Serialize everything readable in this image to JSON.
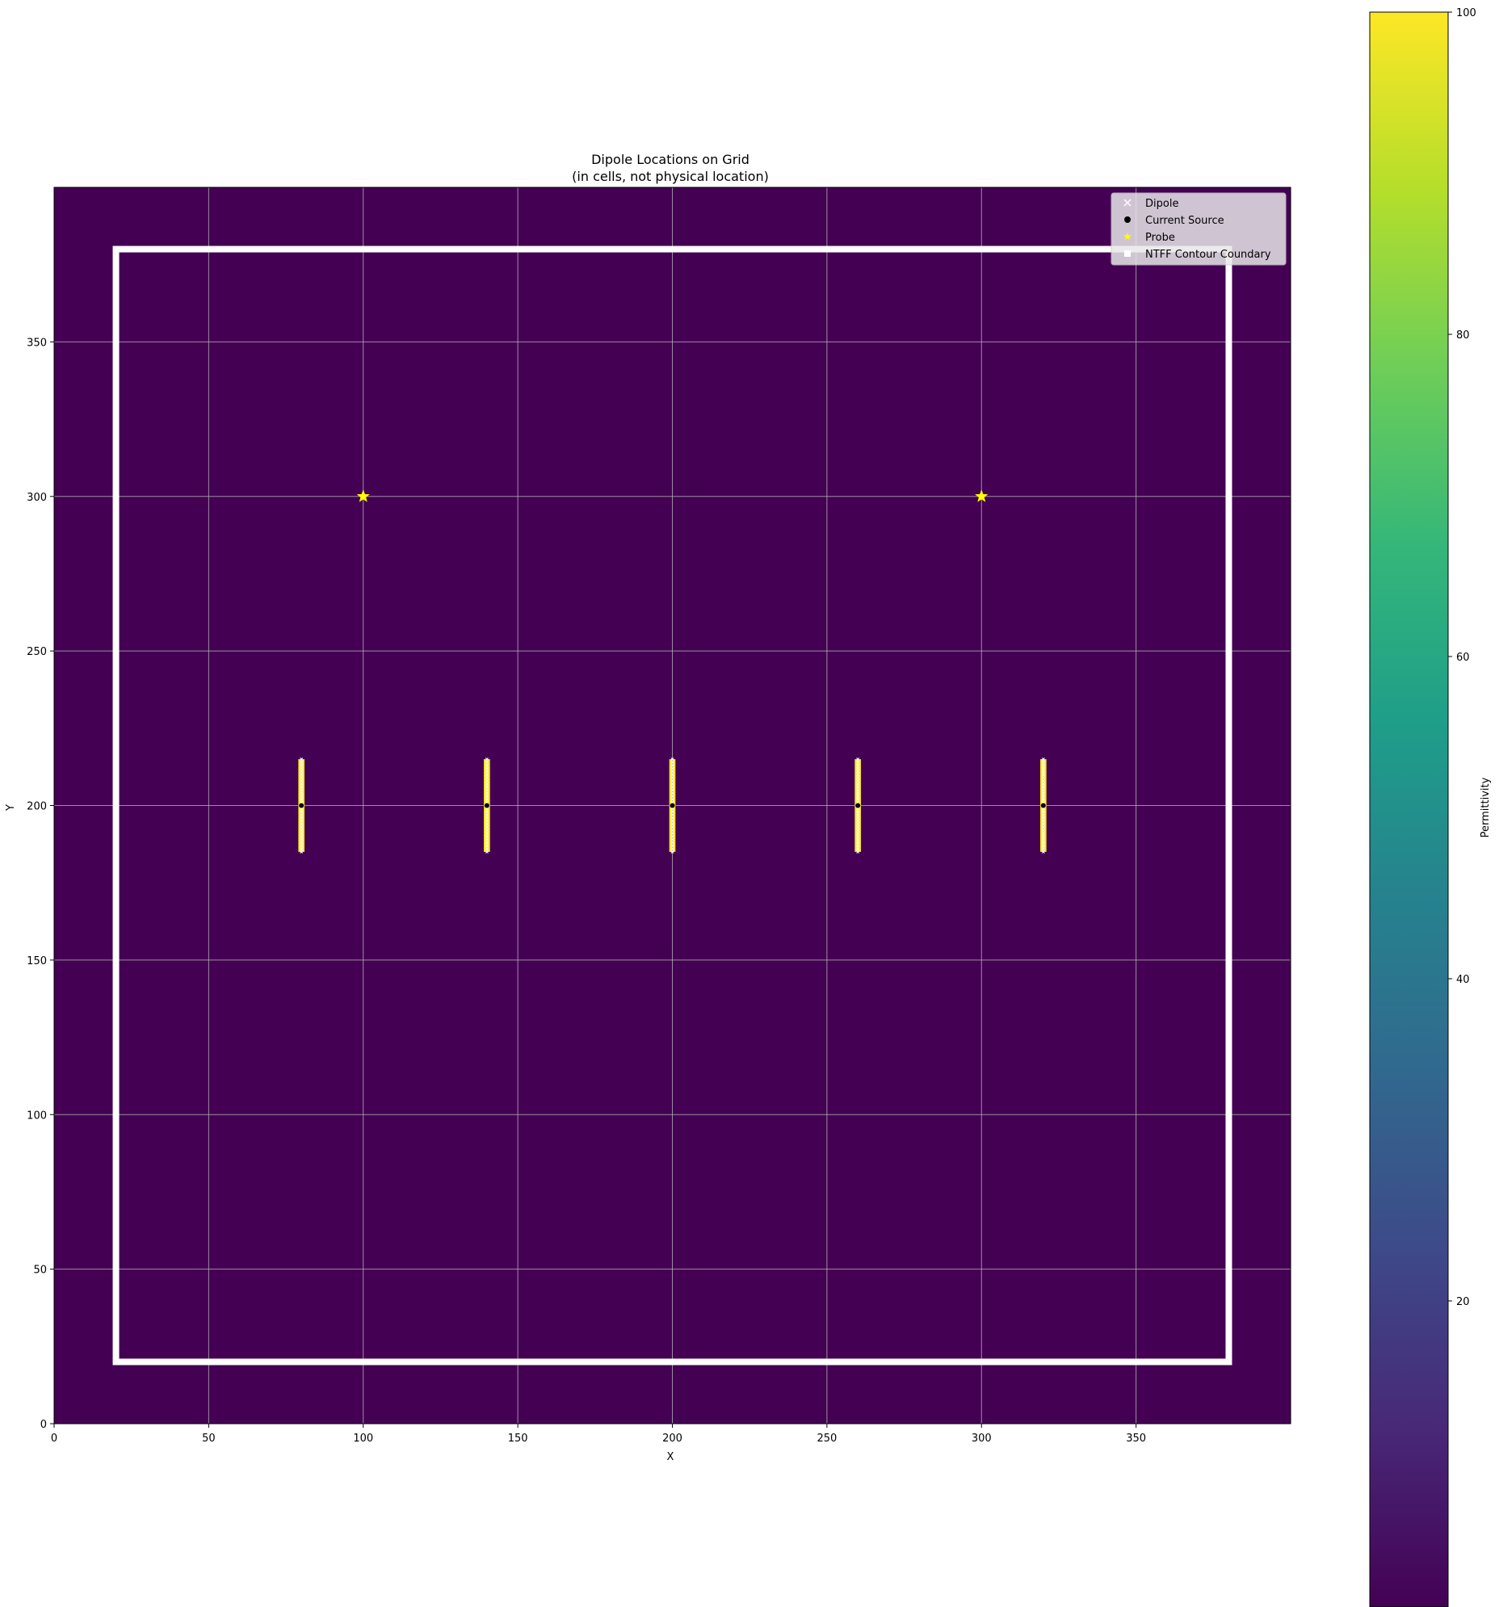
{
  "chart_data": {
    "type": "heatmap",
    "title": "Dipole Locations on Grid",
    "subtitle": "(in cells, not physical location)",
    "xlabel": "X",
    "ylabel": "Y",
    "xlim": [
      0,
      400
    ],
    "ylim": [
      0,
      400
    ],
    "xticks": [
      0,
      50,
      100,
      150,
      200,
      250,
      300,
      350
    ],
    "yticks": [
      0,
      50,
      100,
      150,
      200,
      250,
      300,
      350
    ],
    "grid": true,
    "background_permittivity": 1,
    "colorbar": {
      "label": "Permittivity",
      "min": 1,
      "max": 100,
      "ticks": [
        20,
        40,
        60,
        80,
        100
      ],
      "colormap": "viridis",
      "colors": [
        "#440154",
        "#482878",
        "#3e4989",
        "#31688e",
        "#26828e",
        "#1f9e89",
        "#35b779",
        "#6ece58",
        "#b5de2b",
        "#fde725"
      ]
    },
    "legend": {
      "placement": "top-right",
      "entries": [
        {
          "label": "Dipole",
          "marker": "x",
          "color": "#ffffff"
        },
        {
          "label": "Current Source",
          "marker": "circle",
          "color": "#000000"
        },
        {
          "label": "Probe",
          "marker": "star",
          "color": "#ffff00"
        },
        {
          "label": "NTFF Contour Coundary",
          "marker": "square",
          "color": "#ffffff"
        }
      ]
    },
    "dipoles": [
      {
        "x": 80,
        "y_start": 185,
        "y_end": 215
      },
      {
        "x": 140,
        "y_start": 185,
        "y_end": 215
      },
      {
        "x": 200,
        "y_start": 185,
        "y_end": 215
      },
      {
        "x": 260,
        "y_start": 185,
        "y_end": 215
      },
      {
        "x": 320,
        "y_start": 185,
        "y_end": 215
      }
    ],
    "dipole_permittivity": 100,
    "current_sources": [
      {
        "x": 80,
        "y": 200
      },
      {
        "x": 140,
        "y": 200
      },
      {
        "x": 200,
        "y": 200
      },
      {
        "x": 260,
        "y": 200
      },
      {
        "x": 320,
        "y": 200
      }
    ],
    "probes": [
      {
        "x": 100,
        "y": 300
      },
      {
        "x": 300,
        "y": 300
      }
    ],
    "ntff_boundary": {
      "x_min": 20,
      "x_max": 380,
      "y_min": 20,
      "y_max": 380
    }
  }
}
